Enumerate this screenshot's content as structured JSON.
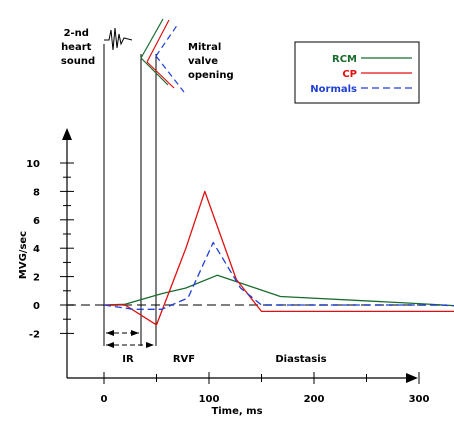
{
  "chart_data": {
    "type": "line",
    "xlabel": "Time, ms",
    "ylabel": "MVG/sec",
    "xlim": [
      -55,
      430
    ],
    "ylim": [
      -2.8,
      12.5
    ],
    "x_ticks": [
      0,
      100,
      200,
      300
    ],
    "y_ticks": [
      -2,
      0,
      2,
      4,
      6,
      8,
      10
    ],
    "grid": false,
    "legend_position": "top-right",
    "series": [
      {
        "name": "RCM",
        "color": "#1a6b2e",
        "dash": "solid",
        "points": [
          [
            0,
            0
          ],
          [
            20,
            0.05
          ],
          [
            55,
            0.8
          ],
          [
            78,
            1.2
          ],
          [
            108,
            2.1
          ],
          [
            168,
            0.6
          ],
          [
            300,
            0.1
          ],
          [
            405,
            -0.35
          ]
        ]
      },
      {
        "name": "CP",
        "color": "#e01010",
        "dash": "solid",
        "points": [
          [
            0,
            0
          ],
          [
            20,
            0
          ],
          [
            50,
            -1.4
          ],
          [
            78,
            4.0
          ],
          [
            96,
            8.0
          ],
          [
            126,
            1.8
          ],
          [
            150,
            -0.45
          ],
          [
            400,
            -0.45
          ]
        ]
      },
      {
        "name": "Normals",
        "color": "#1f3fd6",
        "dash": "dashed",
        "points": [
          [
            0,
            0
          ],
          [
            28,
            -0.3
          ],
          [
            55,
            -0.3
          ],
          [
            80,
            0.5
          ],
          [
            104,
            4.4
          ],
          [
            130,
            1.2
          ],
          [
            150,
            0.0
          ],
          [
            320,
            0.0
          ],
          [
            395,
            -0.3
          ]
        ]
      }
    ],
    "annotations": {
      "heart_sound": "2-nd\nheart\nsound",
      "mitral": "Mitral\nvalve\nopening",
      "ir": "IR",
      "rvf": "RVF",
      "diastasis": "Diastasis"
    }
  }
}
